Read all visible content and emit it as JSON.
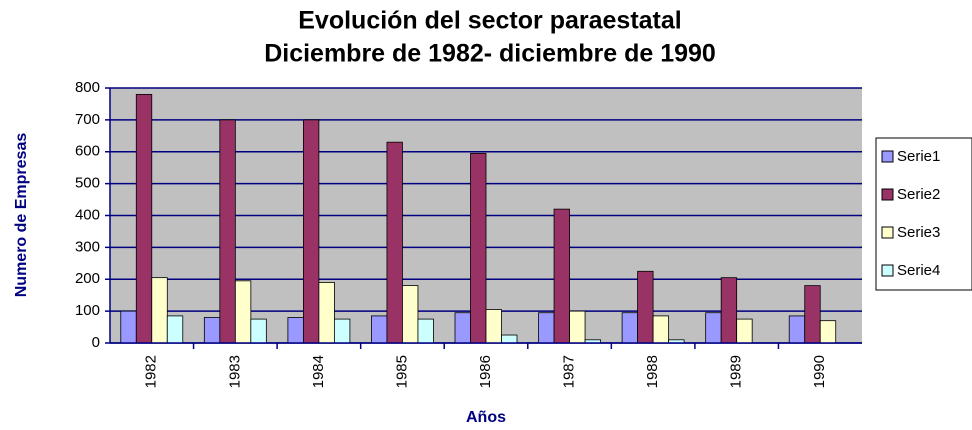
{
  "chart_data": {
    "type": "bar",
    "title": "Evolución del sector paraestatal",
    "subtitle": "Diciembre de 1982- diciembre de 1990",
    "x_label": "Años",
    "y_label": "Numero de Empresas",
    "categories": [
      "1982",
      "1983",
      "1984",
      "1985",
      "1986",
      "1987",
      "1988",
      "1989",
      "1990"
    ],
    "series": [
      {
        "name": "Serie1",
        "color": "#9999ff",
        "values": [
          100,
          80,
          80,
          85,
          95,
          95,
          95,
          95,
          85
        ]
      },
      {
        "name": "Serie2",
        "color": "#993366",
        "values": [
          780,
          700,
          700,
          630,
          595,
          420,
          225,
          205,
          180
        ]
      },
      {
        "name": "Serie3",
        "color": "#ffffcc",
        "values": [
          205,
          195,
          190,
          180,
          105,
          100,
          85,
          75,
          70
        ]
      },
      {
        "name": "Serie4",
        "color": "#ccffff",
        "values": [
          85,
          75,
          75,
          75,
          25,
          10,
          10,
          0,
          0
        ]
      }
    ],
    "ylim": [
      0,
      800
    ],
    "yticks": [
      0,
      100,
      200,
      300,
      400,
      500,
      600,
      700,
      800
    ],
    "grid": true,
    "legend": "right"
  }
}
